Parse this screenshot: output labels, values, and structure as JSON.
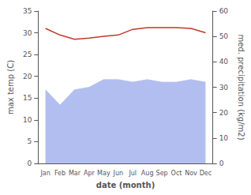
{
  "chart_data": {
    "type": "line",
    "xlabel": "date (month)",
    "ylabel": "max temp (C)",
    "y2label": "med. precipitation (kg/m2)",
    "categories": [
      "Jan",
      "Feb",
      "Mar",
      "Apr",
      "May",
      "Jun",
      "Jul",
      "Aug",
      "Sep",
      "Oct",
      "Nov",
      "Dec"
    ],
    "series": [
      {
        "type": "area",
        "axis": "y2",
        "color": "#b3bef0",
        "values": [
          29,
          23,
          29,
          30,
          33,
          33,
          32,
          33,
          32,
          32,
          33,
          32
        ]
      },
      {
        "type": "line",
        "color": "#c0392b",
        "values": [
          31,
          29.5,
          28.5,
          28.8,
          29.2,
          29.5,
          30.8,
          31.2,
          31.2,
          31.2,
          31.0,
          30.0
        ]
      }
    ],
    "ylim": [
      0,
      35
    ],
    "yticks": [
      0,
      5,
      10,
      15,
      20,
      25,
      30,
      35
    ],
    "y2lim": [
      0,
      60
    ],
    "y2ticks": [
      0,
      10,
      20,
      30,
      40,
      50,
      60
    ],
    "grid": false
  }
}
